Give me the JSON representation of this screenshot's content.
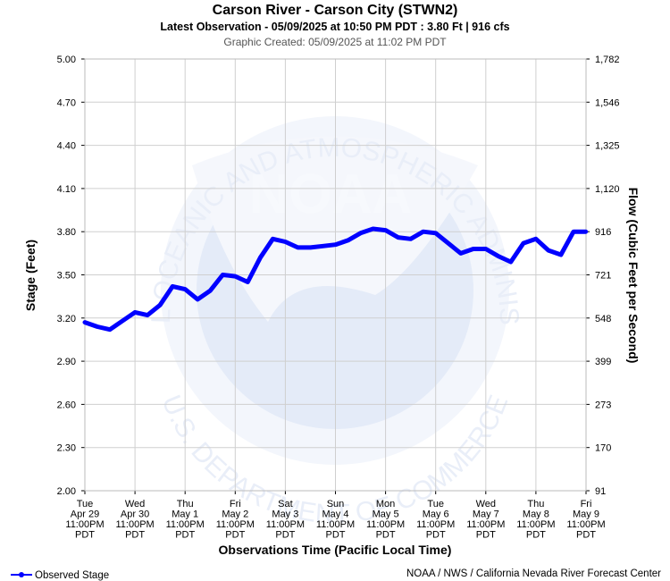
{
  "chart_data": {
    "type": "line",
    "title": "Carson River - Carson City (STWN2)",
    "subtitle": "Latest Observation - 05/09/2025 at 10:50 PM PDT : 3.80 Ft | 916 cfs",
    "created": "Graphic Created: 05/09/2025 at 11:02 PM PDT",
    "xlabel": "Observations Time (Pacific Local Time)",
    "ylabel": "Stage (Feet)",
    "y2label": "Flow (Cubic Feet per Second)",
    "source": "NOAA / NWS / California Nevada River Forecast Center",
    "watermark": {
      "top": "NATIONAL OCEANIC AND ATMOSPHERIC ADMINISTRATION",
      "bottom": "U.S. DEPARTMENT OF COMMERCE",
      "center": "NOAA"
    },
    "grid": true,
    "legend": "bottom-left",
    "xlim": [
      "2025-04-29T23:00",
      "2025-05-09T23:00"
    ],
    "xticks": [
      {
        "value": "2025-04-29T23:00",
        "label": [
          "Tue",
          "Apr 29",
          "11:00PM",
          "PDT"
        ]
      },
      {
        "value": "2025-04-30T23:00",
        "label": [
          "Wed",
          "Apr 30",
          "11:00PM",
          "PDT"
        ]
      },
      {
        "value": "2025-05-01T23:00",
        "label": [
          "Thu",
          "May 1",
          "11:00PM",
          "PDT"
        ]
      },
      {
        "value": "2025-05-02T23:00",
        "label": [
          "Fri",
          "May 2",
          "11:00PM",
          "PDT"
        ]
      },
      {
        "value": "2025-05-03T23:00",
        "label": [
          "Sat",
          "May 3",
          "11:00PM",
          "PDT"
        ]
      },
      {
        "value": "2025-05-04T23:00",
        "label": [
          "Sun",
          "May 4",
          "11:00PM",
          "PDT"
        ]
      },
      {
        "value": "2025-05-05T23:00",
        "label": [
          "Mon",
          "May 5",
          "11:00PM",
          "PDT"
        ]
      },
      {
        "value": "2025-05-06T23:00",
        "label": [
          "Tue",
          "May 6",
          "11:00PM",
          "PDT"
        ]
      },
      {
        "value": "2025-05-07T23:00",
        "label": [
          "Wed",
          "May 7",
          "11:00PM",
          "PDT"
        ]
      },
      {
        "value": "2025-05-08T23:00",
        "label": [
          "Thu",
          "May 8",
          "11:00PM",
          "PDT"
        ]
      },
      {
        "value": "2025-05-09T23:00",
        "label": [
          "Fri",
          "May 9",
          "11:00PM",
          "PDT"
        ]
      }
    ],
    "ylim": [
      2.0,
      5.0
    ],
    "yticks": [
      {
        "value": 2,
        "label": "2.00"
      },
      {
        "value": 2.3,
        "label": "2.30"
      },
      {
        "value": 2.6,
        "label": "2.60"
      },
      {
        "value": 2.9,
        "label": "2.90"
      },
      {
        "value": 3.2,
        "label": "3.20"
      },
      {
        "value": 3.5,
        "label": "3.50"
      },
      {
        "value": 3.8,
        "label": "3.80"
      },
      {
        "value": 4.1,
        "label": "4.10"
      },
      {
        "value": 4.4,
        "label": "4.40"
      },
      {
        "value": 4.7,
        "label": "4.70"
      },
      {
        "value": 5,
        "label": "5.00"
      }
    ],
    "y2ticks": [
      91,
      170,
      273,
      399,
      548,
      721,
      916,
      {
        "value": 1120,
        "label": "1,120"
      },
      {
        "value": 1325,
        "label": "1,325"
      },
      {
        "value": 1546,
        "label": "1,546"
      },
      {
        "value": 1782,
        "label": "1,782"
      }
    ],
    "x": [
      "2025-04-29T23:00",
      "2025-04-30T05:00",
      "2025-04-30T11:00",
      "2025-04-30T17:00",
      "2025-04-30T23:00",
      "2025-05-01T05:00",
      "2025-05-01T11:00",
      "2025-05-01T17:00",
      "2025-05-01T23:00",
      "2025-05-02T05:00",
      "2025-05-02T11:00",
      "2025-05-02T17:00",
      "2025-05-02T23:00",
      "2025-05-03T05:00",
      "2025-05-03T11:00",
      "2025-05-03T17:00",
      "2025-05-03T23:00",
      "2025-05-04T05:00",
      "2025-05-04T11:00",
      "2025-05-04T17:00",
      "2025-05-04T23:00",
      "2025-05-05T05:00",
      "2025-05-05T11:00",
      "2025-05-05T17:00",
      "2025-05-05T23:00",
      "2025-05-06T05:00",
      "2025-05-06T11:00",
      "2025-05-06T17:00",
      "2025-05-06T23:00",
      "2025-05-07T05:00",
      "2025-05-07T11:00",
      "2025-05-07T17:00",
      "2025-05-07T23:00",
      "2025-05-08T05:00",
      "2025-05-08T11:00",
      "2025-05-08T17:00",
      "2025-05-08T23:00",
      "2025-05-09T05:00",
      "2025-05-09T11:00",
      "2025-05-09T17:00",
      "2025-05-09T22:50"
    ],
    "series": [
      {
        "name": "Observed Stage",
        "color": "#0000ff",
        "values": [
          3.17,
          3.14,
          3.12,
          3.18,
          3.24,
          3.22,
          3.29,
          3.42,
          3.4,
          3.33,
          3.39,
          3.5,
          3.49,
          3.45,
          3.62,
          3.75,
          3.73,
          3.69,
          3.69,
          3.7,
          3.71,
          3.74,
          3.79,
          3.82,
          3.81,
          3.76,
          3.75,
          3.8,
          3.79,
          3.72,
          3.65,
          3.68,
          3.68,
          3.63,
          3.59,
          3.72,
          3.75,
          3.67,
          3.64,
          3.8,
          3.8
        ]
      }
    ]
  }
}
